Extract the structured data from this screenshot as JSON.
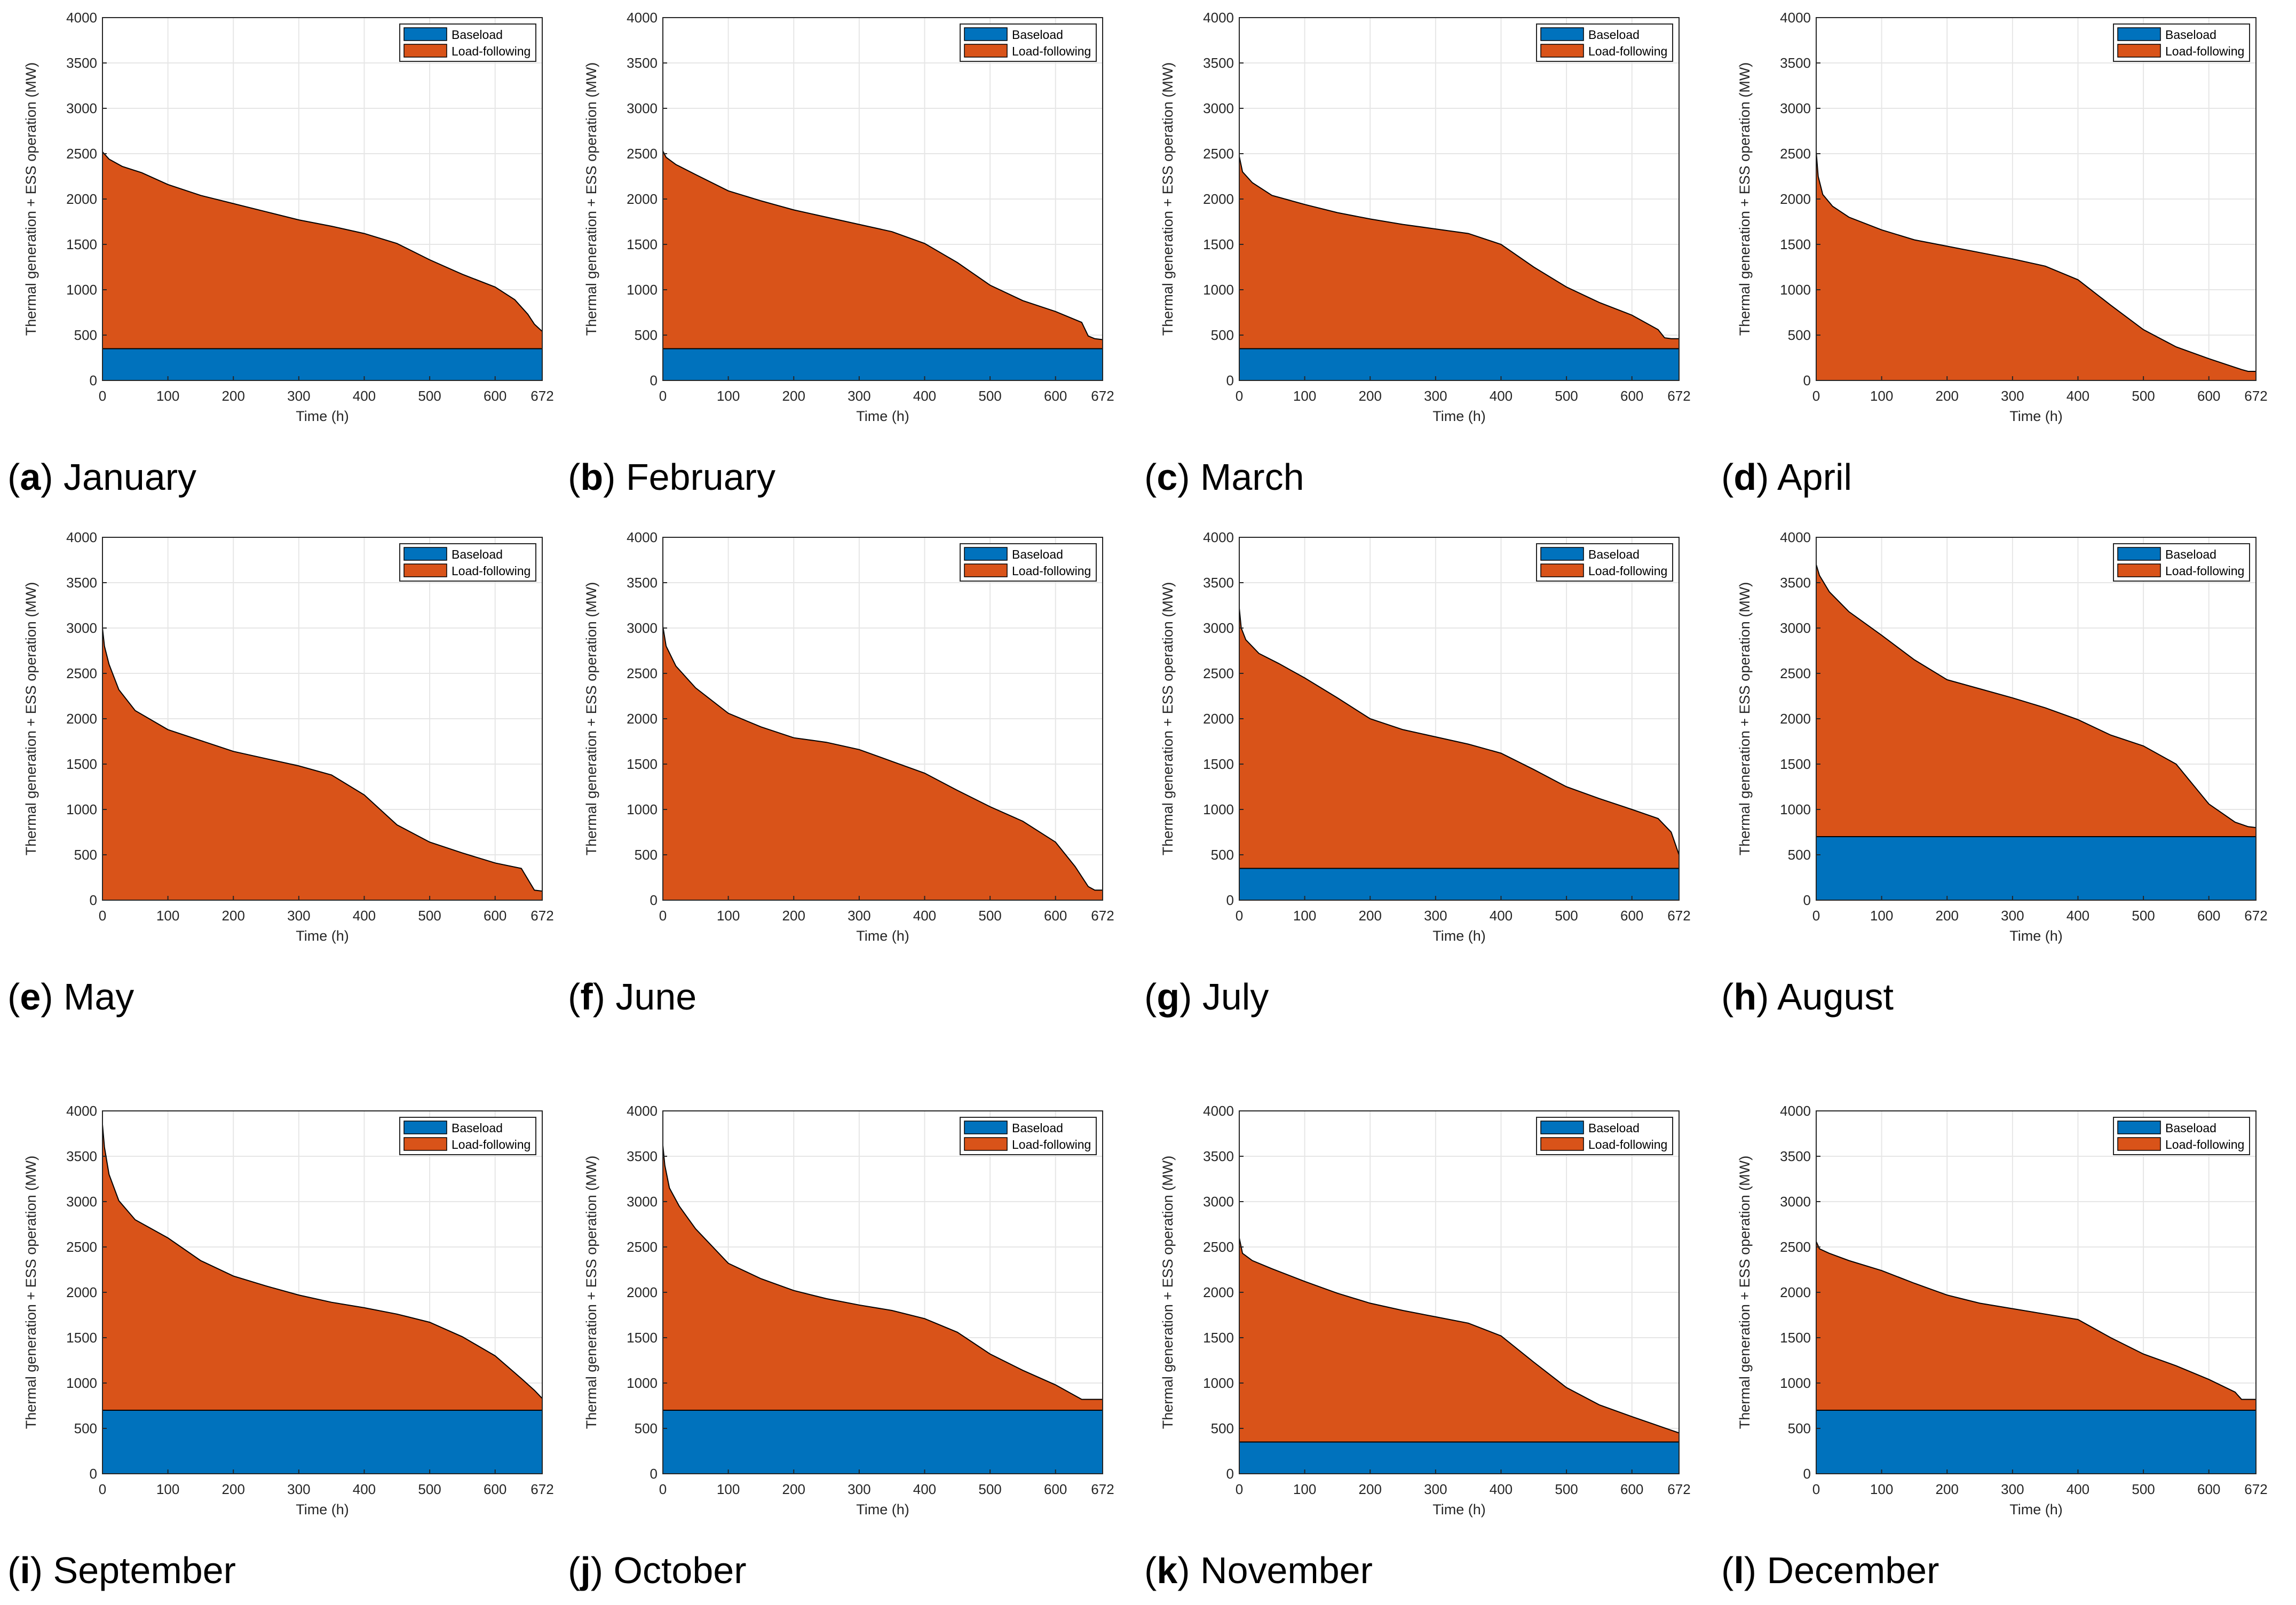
{
  "figure": {
    "colors": {
      "baseload": "#0072BD",
      "load_following": "#D95319",
      "grid": "#e6e6e6",
      "axis": "#262626"
    },
    "shared": {
      "ylabel": "Thermal generation + ESS operation (MW)",
      "xlabel": "Time (h)",
      "xticks": [
        0,
        100,
        200,
        300,
        400,
        500,
        600,
        672
      ],
      "yticks": [
        0,
        500,
        1000,
        1500,
        2000,
        2500,
        3000,
        3500,
        4000
      ],
      "legend": [
        "Baseload",
        "Load-following"
      ],
      "legend_position": "top-right"
    }
  },
  "chart_data": [
    {
      "type": "area",
      "letter": "a",
      "month": "January",
      "xlim": [
        0,
        672
      ],
      "ylim": [
        0,
        4000
      ],
      "baseload": 350,
      "x": [
        0,
        10,
        30,
        60,
        100,
        150,
        200,
        250,
        300,
        350,
        400,
        450,
        500,
        550,
        600,
        630,
        650,
        660,
        672
      ],
      "y": [
        2520,
        2440,
        2360,
        2290,
        2160,
        2040,
        1950,
        1860,
        1770,
        1700,
        1620,
        1510,
        1330,
        1170,
        1030,
        890,
        730,
        620,
        540
      ]
    },
    {
      "type": "area",
      "letter": "b",
      "month": "February",
      "xlim": [
        0,
        672
      ],
      "ylim": [
        0,
        4000
      ],
      "baseload": 350,
      "x": [
        0,
        5,
        20,
        50,
        100,
        150,
        200,
        250,
        300,
        350,
        400,
        450,
        500,
        550,
        600,
        640,
        650,
        660,
        672
      ],
      "y": [
        2530,
        2460,
        2380,
        2270,
        2090,
        1980,
        1880,
        1800,
        1720,
        1640,
        1510,
        1300,
        1050,
        880,
        760,
        640,
        490,
        460,
        450
      ]
    },
    {
      "type": "area",
      "letter": "c",
      "month": "March",
      "xlim": [
        0,
        672
      ],
      "ylim": [
        0,
        4000
      ],
      "baseload": 350,
      "x": [
        0,
        5,
        20,
        50,
        100,
        150,
        200,
        250,
        300,
        350,
        400,
        450,
        500,
        550,
        600,
        640,
        650,
        660,
        672
      ],
      "y": [
        2470,
        2300,
        2180,
        2040,
        1940,
        1850,
        1780,
        1720,
        1670,
        1620,
        1500,
        1250,
        1030,
        860,
        720,
        560,
        470,
        460,
        460
      ]
    },
    {
      "type": "area",
      "letter": "d",
      "month": "April",
      "xlim": [
        0,
        672
      ],
      "ylim": [
        0,
        4000
      ],
      "baseload": 0,
      "x": [
        0,
        3,
        10,
        25,
        50,
        100,
        150,
        200,
        250,
        300,
        350,
        400,
        450,
        500,
        550,
        600,
        650,
        660,
        672
      ],
      "y": [
        2520,
        2250,
        2050,
        1920,
        1800,
        1660,
        1550,
        1480,
        1410,
        1340,
        1260,
        1110,
        830,
        560,
        370,
        240,
        120,
        100,
        100
      ]
    },
    {
      "type": "area",
      "letter": "e",
      "month": "May",
      "xlim": [
        0,
        672
      ],
      "ylim": [
        0,
        4000
      ],
      "baseload": 0,
      "x": [
        0,
        3,
        10,
        25,
        50,
        100,
        150,
        200,
        250,
        300,
        350,
        400,
        450,
        500,
        550,
        600,
        640,
        660,
        672
      ],
      "y": [
        3000,
        2800,
        2600,
        2320,
        2090,
        1880,
        1760,
        1640,
        1560,
        1480,
        1380,
        1160,
        830,
        640,
        520,
        410,
        350,
        110,
        100
      ]
    },
    {
      "type": "area",
      "letter": "f",
      "month": "June",
      "xlim": [
        0,
        672
      ],
      "ylim": [
        0,
        4000
      ],
      "baseload": 0,
      "x": [
        0,
        5,
        20,
        50,
        100,
        150,
        200,
        250,
        300,
        350,
        400,
        450,
        500,
        550,
        600,
        630,
        650,
        660,
        672
      ],
      "y": [
        3020,
        2800,
        2580,
        2340,
        2060,
        1910,
        1790,
        1740,
        1660,
        1530,
        1400,
        1210,
        1030,
        870,
        640,
        370,
        150,
        110,
        110
      ]
    },
    {
      "type": "area",
      "letter": "g",
      "month": "July",
      "xlim": [
        0,
        672
      ],
      "ylim": [
        0,
        4000
      ],
      "baseload": 350,
      "x": [
        0,
        3,
        10,
        30,
        60,
        100,
        150,
        200,
        250,
        300,
        350,
        400,
        450,
        500,
        550,
        600,
        640,
        660,
        672
      ],
      "y": [
        3220,
        3000,
        2870,
        2720,
        2610,
        2450,
        2230,
        2000,
        1880,
        1800,
        1720,
        1620,
        1440,
        1250,
        1120,
        1000,
        900,
        750,
        500
      ]
    },
    {
      "type": "area",
      "letter": "h",
      "month": "August",
      "xlim": [
        0,
        672
      ],
      "ylim": [
        0,
        4000
      ],
      "baseload": 700,
      "x": [
        0,
        5,
        20,
        50,
        100,
        150,
        200,
        250,
        300,
        350,
        400,
        450,
        500,
        550,
        600,
        640,
        660,
        672
      ],
      "y": [
        3700,
        3580,
        3400,
        3180,
        2920,
        2650,
        2430,
        2330,
        2230,
        2120,
        1990,
        1820,
        1700,
        1500,
        1060,
        860,
        810,
        800
      ]
    },
    {
      "type": "area",
      "letter": "i",
      "month": "September",
      "xlim": [
        0,
        672
      ],
      "ylim": [
        0,
        4000
      ],
      "baseload": 700,
      "x": [
        0,
        3,
        10,
        25,
        50,
        100,
        150,
        200,
        250,
        300,
        350,
        400,
        450,
        500,
        550,
        600,
        640,
        660,
        672
      ],
      "y": [
        3850,
        3600,
        3300,
        3010,
        2800,
        2600,
        2350,
        2180,
        2070,
        1970,
        1890,
        1830,
        1760,
        1670,
        1510,
        1300,
        1050,
        920,
        830
      ]
    },
    {
      "type": "area",
      "letter": "j",
      "month": "October",
      "xlim": [
        0,
        672
      ],
      "ylim": [
        0,
        4000
      ],
      "baseload": 700,
      "x": [
        0,
        3,
        10,
        25,
        50,
        100,
        150,
        200,
        250,
        300,
        350,
        400,
        450,
        500,
        550,
        600,
        640,
        650,
        660,
        672
      ],
      "y": [
        3620,
        3400,
        3150,
        2950,
        2700,
        2320,
        2150,
        2020,
        1930,
        1860,
        1800,
        1710,
        1560,
        1320,
        1140,
        980,
        820,
        820,
        820,
        820
      ]
    },
    {
      "type": "area",
      "letter": "k",
      "month": "November",
      "xlim": [
        0,
        672
      ],
      "ylim": [
        0,
        4000
      ],
      "baseload": 350,
      "x": [
        0,
        5,
        20,
        50,
        100,
        150,
        200,
        250,
        300,
        350,
        400,
        450,
        500,
        550,
        600,
        640,
        660,
        672
      ],
      "y": [
        2600,
        2430,
        2350,
        2260,
        2120,
        1990,
        1880,
        1800,
        1730,
        1660,
        1520,
        1230,
        950,
        760,
        630,
        530,
        480,
        450
      ]
    },
    {
      "type": "area",
      "letter": "l",
      "month": "December",
      "xlim": [
        0,
        672
      ],
      "ylim": [
        0,
        4000
      ],
      "baseload": 700,
      "x": [
        0,
        5,
        20,
        50,
        100,
        150,
        200,
        250,
        300,
        350,
        400,
        450,
        500,
        550,
        600,
        640,
        650,
        660,
        672
      ],
      "y": [
        2560,
        2480,
        2430,
        2350,
        2240,
        2100,
        1970,
        1880,
        1820,
        1760,
        1700,
        1500,
        1320,
        1190,
        1040,
        900,
        820,
        820,
        820
      ]
    }
  ]
}
